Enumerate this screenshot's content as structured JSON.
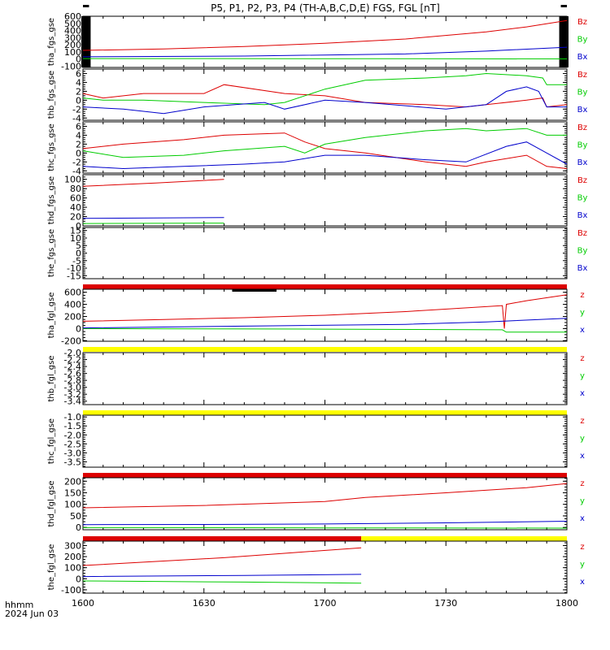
{
  "title": "P5, P1, P2, P3, P4 (TH-A,B,C,D,E) FGS, FGL [nT]",
  "footer": {
    "line1": "hhmm",
    "line2": "2024 Jun 03"
  },
  "colors": {
    "red": "#dd0000",
    "green": "#00cc00",
    "blue": "#0000cc",
    "yellow": "#ffff00",
    "black": "#000000"
  },
  "chart_data": [
    {
      "type": "line",
      "ylabel": "tha_fgs_gse",
      "ylim": [
        -120,
        600
      ],
      "yticks": [
        -100,
        0,
        100,
        200,
        300,
        400,
        500,
        600
      ],
      "yticklabels": [
        "-100",
        "0",
        "100",
        "200",
        "300",
        "400",
        "500",
        "600"
      ],
      "xlim": [
        0,
        120
      ],
      "series": [
        {
          "name": "Bz",
          "color": "red",
          "x": [
            0,
            20,
            40,
            60,
            80,
            100,
            110,
            120
          ],
          "y": [
            120,
            140,
            175,
            220,
            280,
            380,
            450,
            540
          ]
        },
        {
          "name": "By",
          "color": "green",
          "x": [
            0,
            60,
            120
          ],
          "y": [
            5,
            3,
            0
          ]
        },
        {
          "name": "Bx",
          "color": "blue",
          "x": [
            0,
            40,
            80,
            100,
            120
          ],
          "y": [
            30,
            40,
            70,
            110,
            165
          ]
        }
      ]
    },
    {
      "type": "line",
      "ylabel": "thb_fgs_gse",
      "ylim": [
        -4.5,
        7
      ],
      "yticks": [
        -4,
        -2,
        0,
        2,
        4,
        6
      ],
      "yticklabels": [
        "-4",
        "-2",
        "0",
        "2",
        "4",
        "6"
      ],
      "xlim": [
        0,
        120
      ],
      "series": [
        {
          "name": "Bz",
          "color": "red",
          "x": [
            0,
            5,
            15,
            30,
            35,
            50,
            60,
            70,
            85,
            95,
            100,
            110,
            114,
            115,
            120
          ],
          "y": [
            1.5,
            0.5,
            1.5,
            1.5,
            3.5,
            1.5,
            1.0,
            -0.5,
            -1.0,
            -1.5,
            -1.0,
            0.0,
            0.5,
            -1.5,
            -1.0
          ]
        },
        {
          "name": "By",
          "color": "green",
          "x": [
            0,
            5,
            15,
            30,
            45,
            50,
            60,
            70,
            85,
            95,
            100,
            110,
            114,
            115,
            120
          ],
          "y": [
            0.5,
            0,
            0,
            -0.5,
            -1.0,
            -0.5,
            2.5,
            4.5,
            5.0,
            5.5,
            6.0,
            5.5,
            5.0,
            3.5,
            3.5
          ]
        },
        {
          "name": "Bx",
          "color": "blue",
          "x": [
            0,
            10,
            20,
            30,
            45,
            50,
            60,
            70,
            90,
            100,
            105,
            110,
            113,
            115,
            120
          ],
          "y": [
            -1.5,
            -2.0,
            -3.0,
            -1.5,
            -0.5,
            -2.0,
            0,
            -0.5,
            -2.0,
            -1.0,
            2.0,
            3.0,
            2.0,
            -1.5,
            -1.5
          ]
        }
      ]
    },
    {
      "type": "line",
      "ylabel": "thc_fgs_gse",
      "ylim": [
        -4.5,
        7
      ],
      "yticks": [
        -4,
        -2,
        0,
        2,
        4,
        6
      ],
      "yticklabels": [
        "-4",
        "-2",
        "0",
        "2",
        "4",
        "6"
      ],
      "xlim": [
        0,
        120
      ],
      "series": [
        {
          "name": "Bz",
          "color": "red",
          "x": [
            0,
            10,
            25,
            35,
            50,
            55,
            60,
            70,
            85,
            95,
            100,
            110,
            115,
            120
          ],
          "y": [
            1.0,
            2.0,
            3.0,
            4.0,
            4.5,
            2.5,
            1.0,
            0,
            -2.0,
            -3.0,
            -2.0,
            -0.5,
            -3.0,
            -3.5
          ]
        },
        {
          "name": "By",
          "color": "green",
          "x": [
            0,
            10,
            25,
            35,
            50,
            55,
            60,
            70,
            85,
            95,
            100,
            110,
            115,
            120
          ],
          "y": [
            0.5,
            -1.0,
            -0.5,
            0.5,
            1.5,
            0,
            2.0,
            3.5,
            5.0,
            5.5,
            5.0,
            5.5,
            4.0,
            4.0
          ]
        },
        {
          "name": "Bx",
          "color": "blue",
          "x": [
            0,
            10,
            25,
            40,
            50,
            60,
            70,
            85,
            95,
            105,
            110,
            115,
            120
          ],
          "y": [
            -3.0,
            -3.5,
            -3.0,
            -2.5,
            -2.0,
            -0.5,
            -0.5,
            -1.5,
            -2.0,
            1.5,
            2.5,
            0,
            -2.5
          ]
        }
      ]
    },
    {
      "type": "line",
      "ylabel": "thd_fgs_gse",
      "ylim": [
        0,
        110
      ],
      "yticks": [
        0,
        20,
        40,
        60,
        80,
        100
      ],
      "yticklabels": [
        "0",
        "20",
        "40",
        "60",
        "80",
        "100"
      ],
      "xlim": [
        0,
        120
      ],
      "series": [
        {
          "name": "Bz",
          "color": "red",
          "x": [
            0,
            18,
            35
          ],
          "y": [
            85,
            92,
            100
          ]
        },
        {
          "name": "By",
          "color": "green",
          "x": [
            0,
            35
          ],
          "y": [
            5,
            6
          ]
        },
        {
          "name": "Bx",
          "color": "blue",
          "x": [
            0,
            35
          ],
          "y": [
            16,
            18
          ]
        }
      ]
    },
    {
      "type": "line",
      "ylabel": "the_fgs_gse",
      "ylim": [
        -17,
        17
      ],
      "yticks": [
        -15,
        -10,
        -5,
        0,
        5,
        10,
        15
      ],
      "yticklabels": [
        "-15",
        "-10",
        "-5",
        "0",
        "5",
        "10",
        "15"
      ],
      "xlim": [
        0,
        120
      ],
      "series": [
        {
          "name": "Bz",
          "color": "red",
          "x": [],
          "y": []
        },
        {
          "name": "By",
          "color": "green",
          "x": [],
          "y": []
        },
        {
          "name": "Bx",
          "color": "blue",
          "x": [],
          "y": []
        }
      ]
    },
    {
      "type": "line",
      "ylabel": "tha_fgl_gse",
      "ylim": [
        -210,
        650
      ],
      "yticks": [
        -200,
        0,
        200,
        400,
        600
      ],
      "yticklabels": [
        "-200",
        "0",
        "200",
        "400",
        "600"
      ],
      "xlim": [
        0,
        120
      ],
      "series": [
        {
          "name": "z",
          "color": "red",
          "x": [
            0,
            20,
            40,
            60,
            80,
            104,
            104.5,
            105,
            110,
            120
          ],
          "y": [
            120,
            150,
            180,
            220,
            280,
            380,
            0,
            400,
            460,
            560
          ]
        },
        {
          "name": "y",
          "color": "green",
          "x": [
            0,
            60,
            104,
            105,
            120
          ],
          "y": [
            0,
            -10,
            -20,
            -60,
            -60
          ]
        },
        {
          "name": "x",
          "color": "blue",
          "x": [
            0,
            40,
            80,
            100,
            120
          ],
          "y": [
            10,
            40,
            70,
            110,
            170
          ]
        }
      ]
    },
    {
      "type": "line",
      "ylabel": "thb_fgl_gse",
      "ylim": [
        -3.5,
        -2.0
      ],
      "yticks": [
        -3.4,
        -3.2,
        -3.0,
        -2.8,
        -2.6,
        -2.4,
        -2.2,
        -2.0
      ],
      "yticklabels": [
        "-3.4",
        "-3.2",
        "-3.0",
        "-2.8",
        "-2.6",
        "-2.4",
        "-2.2",
        "-2.0"
      ],
      "xlim": [
        0,
        120
      ],
      "series": [
        {
          "name": "z",
          "color": "red",
          "x": [],
          "y": []
        },
        {
          "name": "y",
          "color": "green",
          "x": [],
          "y": []
        },
        {
          "name": "x",
          "color": "blue",
          "x": [],
          "y": []
        }
      ]
    },
    {
      "type": "line",
      "ylabel": "thc_fgl_gse",
      "ylim": [
        -3.8,
        -0.9
      ],
      "yticks": [
        -3.5,
        -3.0,
        -2.5,
        -2.0,
        -1.5,
        -1.0
      ],
      "yticklabels": [
        "-3.5",
        "-3.0",
        "-2.5",
        "-2.0",
        "-1.5",
        "-1.0"
      ],
      "xlim": [
        0,
        120
      ],
      "series": [
        {
          "name": "z",
          "color": "red",
          "x": [],
          "y": []
        },
        {
          "name": "y",
          "color": "green",
          "x": [],
          "y": []
        },
        {
          "name": "x",
          "color": "blue",
          "x": [],
          "y": []
        }
      ]
    },
    {
      "type": "line",
      "ylabel": "thd_fgl_gse",
      "ylim": [
        -10,
        215
      ],
      "yticks": [
        0,
        50,
        100,
        150,
        200
      ],
      "yticklabels": [
        "0",
        "50",
        "100",
        "150",
        "200"
      ],
      "xlim": [
        0,
        120
      ],
      "series": [
        {
          "name": "z",
          "color": "red",
          "x": [
            0,
            30,
            60,
            70,
            90,
            110,
            120
          ],
          "y": [
            85,
            95,
            112,
            130,
            150,
            172,
            190
          ]
        },
        {
          "name": "y",
          "color": "green",
          "x": [
            0,
            60,
            120
          ],
          "y": [
            -1,
            -2,
            -3
          ]
        },
        {
          "name": "x",
          "color": "blue",
          "x": [
            0,
            30,
            60,
            90,
            120
          ],
          "y": [
            12,
            13,
            15,
            20,
            27
          ]
        }
      ]
    },
    {
      "type": "line",
      "ylabel": "the_fgl_gse",
      "ylim": [
        -130,
        340
      ],
      "yticks": [
        -100,
        0,
        100,
        200,
        300
      ],
      "yticklabels": [
        "-100",
        "0",
        "100",
        "200",
        "300"
      ],
      "xlim": [
        0,
        120
      ],
      "series": [
        {
          "name": "z",
          "color": "red",
          "x": [
            0,
            15,
            35,
            50,
            69
          ],
          "y": [
            120,
            150,
            190,
            230,
            280
          ]
        },
        {
          "name": "y",
          "color": "green",
          "x": [
            0,
            40,
            69
          ],
          "y": [
            -20,
            -30,
            -40
          ]
        },
        {
          "name": "x",
          "color": "blue",
          "x": [
            0,
            40,
            69
          ],
          "y": [
            20,
            30,
            40
          ]
        }
      ]
    }
  ],
  "xaxis": {
    "ticks": [
      0,
      30,
      60,
      90,
      120
    ],
    "labels": [
      "1600",
      "1630",
      "1700",
      "1730",
      "1800"
    ]
  },
  "top_bars": [
    {
      "segments": [
        {
          "from": 0,
          "to": 1.5,
          "color": "black"
        },
        {
          "from": 118.5,
          "to": 120,
          "color": "black"
        }
      ]
    },
    {
      "segments": []
    },
    {
      "segments": []
    },
    {
      "segments": []
    },
    {
      "segments": []
    },
    {
      "segments": [
        {
          "from": 0,
          "to": 120,
          "color": "red"
        },
        {
          "from": 37,
          "to": 48,
          "color": "black"
        }
      ]
    },
    {
      "segments": [
        {
          "from": 0,
          "to": 120,
          "color": "yellow"
        }
      ]
    },
    {
      "segments": [
        {
          "from": 0,
          "to": 120,
          "color": "yellow"
        }
      ]
    },
    {
      "segments": [
        {
          "from": 0,
          "to": 120,
          "color": "red"
        }
      ]
    },
    {
      "segments": [
        {
          "from": 0,
          "to": 69,
          "color": "red"
        },
        {
          "from": 69,
          "to": 120,
          "color": "yellow"
        }
      ]
    }
  ]
}
